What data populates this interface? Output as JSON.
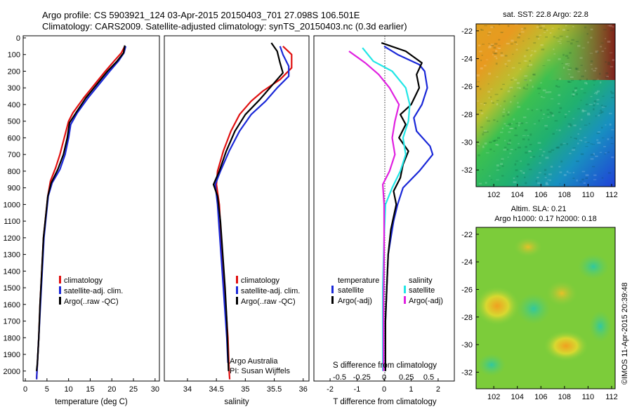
{
  "header": {
    "title_line1": "Argo profile: CS 5903921_124 03-Apr-2015 20150403_701 27.098S 106.501E",
    "title_line2": "Climatology: CARS2009. Satellite-adjusted climatology: synTS_20150403.nc (0.3d earlier)"
  },
  "footer": {
    "credit": "©IMOS 11-Apr-2015 20:39:48",
    "argo_australia": "Argo Australia",
    "pi": "PI: Susan Wijffels"
  },
  "colors": {
    "climatology": "#e01010",
    "satellite": "#1a28d8",
    "argo": "#000000",
    "sat_salinity": "#22e6e6",
    "argo_salinity": "#e020e0"
  },
  "chart_data": [
    {
      "id": "temperature",
      "type": "line",
      "xlabel": "temperature (deg C)",
      "ylabel": "",
      "xlim": [
        -0.5,
        31
      ],
      "ylim": [
        2060,
        0
      ],
      "xticks": [
        "0",
        "5",
        "10",
        "15",
        "20",
        "25",
        "30"
      ],
      "xtick_values": [
        0,
        5,
        10,
        15,
        20,
        25,
        30
      ],
      "yticks": [
        "0",
        "100",
        "200",
        "300",
        "400",
        "500",
        "600",
        "700",
        "800",
        "900",
        "1000",
        "1100",
        "1200",
        "1300",
        "1400",
        "1500",
        "1600",
        "1700",
        "1800",
        "1900",
        "2000"
      ],
      "legend": [
        "climatology",
        "satellite-adj. clim.",
        "Argo(..raw -QC)"
      ],
      "series": [
        {
          "name": "climatology",
          "color": "#e01010",
          "points": [
            [
              23,
              50
            ],
            [
              22.2,
              90
            ],
            [
              20.5,
              140
            ],
            [
              18.5,
              200
            ],
            [
              16,
              280
            ],
            [
              13.5,
              360
            ],
            [
              11,
              450
            ],
            [
              10,
              500
            ],
            [
              9,
              600
            ],
            [
              8,
              700
            ],
            [
              7,
              780
            ],
            [
              5.8,
              860
            ],
            [
              5.2,
              950
            ],
            [
              4.6,
              1100
            ],
            [
              4.2,
              1200
            ],
            [
              3.8,
              1400
            ],
            [
              3.4,
              1600
            ],
            [
              3.1,
              1800
            ],
            [
              2.8,
              1950
            ],
            [
              2.6,
              2050
            ]
          ]
        },
        {
          "name": "satellite-adj. clim.",
          "color": "#1a28d8",
          "points": [
            [
              23.2,
              50
            ],
            [
              22.8,
              90
            ],
            [
              21.5,
              140
            ],
            [
              19.5,
              200
            ],
            [
              17,
              280
            ],
            [
              14.5,
              360
            ],
            [
              12,
              450
            ],
            [
              10.5,
              520
            ],
            [
              10,
              600
            ],
            [
              9.2,
              700
            ],
            [
              8,
              790
            ],
            [
              6.2,
              870
            ],
            [
              5.3,
              950
            ],
            [
              4.7,
              1100
            ],
            [
              4.3,
              1200
            ],
            [
              3.9,
              1400
            ],
            [
              3.5,
              1600
            ],
            [
              3.1,
              1800
            ],
            [
              2.8,
              1950
            ],
            [
              2.6,
              2050
            ]
          ]
        },
        {
          "name": "Argo(..raw -QC)",
          "color": "#000000",
          "points": [
            [
              23,
              45
            ],
            [
              22.7,
              90
            ],
            [
              21.2,
              140
            ],
            [
              19,
              200
            ],
            [
              16.5,
              280
            ],
            [
              14,
              360
            ],
            [
              11.7,
              450
            ],
            [
              10.2,
              510
            ],
            [
              9.7,
              600
            ],
            [
              8.8,
              700
            ],
            [
              7.5,
              790
            ],
            [
              6,
              870
            ],
            [
              5.2,
              950
            ],
            [
              4.6,
              1100
            ],
            [
              4.2,
              1200
            ],
            [
              3.8,
              1400
            ],
            [
              3.4,
              1600
            ],
            [
              3.1,
              1800
            ],
            [
              2.8,
              1950
            ],
            [
              2.6,
              2000
            ]
          ]
        }
      ]
    },
    {
      "id": "salinity",
      "type": "line",
      "xlabel": "salinity",
      "xlim": [
        33.6,
        36.1
      ],
      "ylim": [
        2060,
        0
      ],
      "xticks": [
        "34",
        "34.5",
        "35",
        "35.5",
        "36"
      ],
      "xtick_values": [
        34,
        34.5,
        35,
        35.5,
        36
      ],
      "legend": [
        "climatology",
        "satellite-adj. clim.",
        "Argo(..raw -QC)"
      ],
      "series": [
        {
          "name": "climatology",
          "color": "#e01010",
          "points": [
            [
              35.65,
              50
            ],
            [
              35.8,
              100
            ],
            [
              35.8,
              180
            ],
            [
              35.6,
              250
            ],
            [
              35.3,
              320
            ],
            [
              35.1,
              380
            ],
            [
              34.9,
              460
            ],
            [
              34.75,
              560
            ],
            [
              34.62,
              680
            ],
            [
              34.52,
              800
            ],
            [
              34.5,
              880
            ],
            [
              34.55,
              1000
            ],
            [
              34.58,
              1200
            ],
            [
              34.62,
              1400
            ],
            [
              34.66,
              1600
            ],
            [
              34.7,
              1800
            ],
            [
              34.72,
              2000
            ],
            [
              34.73,
              2050
            ]
          ]
        },
        {
          "name": "satellite-adj. clim.",
          "color": "#1a28d8",
          "points": [
            [
              35.6,
              50
            ],
            [
              35.65,
              100
            ],
            [
              35.75,
              170
            ],
            [
              35.75,
              230
            ],
            [
              35.55,
              300
            ],
            [
              35.35,
              380
            ],
            [
              35.1,
              460
            ],
            [
              34.9,
              560
            ],
            [
              34.72,
              680
            ],
            [
              34.57,
              800
            ],
            [
              34.48,
              880
            ],
            [
              34.52,
              1000
            ],
            [
              34.56,
              1200
            ],
            [
              34.6,
              1400
            ],
            [
              34.64,
              1600
            ],
            [
              34.68,
              1800
            ],
            [
              34.7,
              1950
            ]
          ]
        },
        {
          "name": "Argo(..raw -QC)",
          "color": "#000000",
          "points": [
            [
              35.45,
              30
            ],
            [
              35.55,
              80
            ],
            [
              35.6,
              150
            ],
            [
              35.65,
              210
            ],
            [
              35.45,
              290
            ],
            [
              35.25,
              370
            ],
            [
              35.0,
              460
            ],
            [
              34.82,
              560
            ],
            [
              34.67,
              680
            ],
            [
              34.55,
              800
            ],
            [
              34.45,
              880
            ],
            [
              34.52,
              950
            ],
            [
              34.57,
              1100
            ],
            [
              34.61,
              1300
            ],
            [
              34.65,
              1500
            ],
            [
              34.68,
              1700
            ],
            [
              34.7,
              1900
            ],
            [
              34.71,
              2000
            ]
          ]
        }
      ]
    },
    {
      "id": "difference",
      "type": "line",
      "xlabel": "T difference from climatology",
      "xlabel2": "S difference from climatology",
      "xlim": [
        -2.6,
        2.6
      ],
      "ylim": [
        2060,
        0
      ],
      "xticks": [
        "-2",
        "-1",
        "0",
        "1",
        "2"
      ],
      "xtick_values": [
        -2,
        -1,
        0,
        1,
        2
      ],
      "xticks2": [
        "-0.5",
        "-0.25",
        "0",
        "0.25",
        "0.5"
      ],
      "legend_temperature_title": "temperature",
      "legend_salinity_title": "salinity",
      "legend": [
        "satellite",
        "Argo(-adj)",
        "satellite",
        "Argo(-adj)"
      ],
      "series": [
        {
          "name": "satellite",
          "group": "temperature",
          "color": "#1a28d8",
          "points": [
            [
              0,
              50
            ],
            [
              0.5,
              100
            ],
            [
              1.3,
              160
            ],
            [
              1.5,
              200
            ],
            [
              1.6,
              300
            ],
            [
              1.4,
              400
            ],
            [
              1.1,
              480
            ],
            [
              1.2,
              560
            ],
            [
              1.7,
              650
            ],
            [
              1.8,
              700
            ],
            [
              1.3,
              800
            ],
            [
              0.7,
              900
            ],
            [
              0.5,
              1000
            ],
            [
              0.35,
              1100
            ],
            [
              0.25,
              1200
            ],
            [
              0.15,
              1300
            ],
            [
              0.1,
              1500
            ],
            [
              0.05,
              1700
            ],
            [
              0.05,
              2000
            ]
          ]
        },
        {
          "name": "Argo(-adj)",
          "group": "temperature",
          "color": "#000000",
          "points": [
            [
              -0.1,
              30
            ],
            [
              0.8,
              80
            ],
            [
              1.4,
              150
            ],
            [
              1.2,
              220
            ],
            [
              1.3,
              300
            ],
            [
              1.0,
              400
            ],
            [
              0.6,
              460
            ],
            [
              0.8,
              520
            ],
            [
              0.55,
              600
            ],
            [
              0.9,
              680
            ],
            [
              0.7,
              760
            ],
            [
              0.6,
              840
            ],
            [
              0.35,
              920
            ],
            [
              0.45,
              1000
            ],
            [
              0.25,
              1150
            ],
            [
              0.15,
              1300
            ],
            [
              0.1,
              1500
            ],
            [
              0.05,
              1700
            ],
            [
              0.05,
              2000
            ]
          ]
        },
        {
          "name": "satellite",
          "group": "salinity",
          "color": "#22e6e6",
          "points": [
            [
              -0.8,
              60
            ],
            [
              -0.4,
              140
            ],
            [
              0.3,
              200
            ],
            [
              0.8,
              300
            ],
            [
              0.95,
              400
            ],
            [
              0.9,
              500
            ],
            [
              0.7,
              600
            ],
            [
              0.8,
              700
            ],
            [
              0.6,
              800
            ],
            [
              0.3,
              900
            ],
            [
              0.05,
              1000
            ],
            [
              0.0,
              1200
            ],
            [
              -0.05,
              1500
            ],
            [
              -0.05,
              2000
            ]
          ]
        },
        {
          "name": "Argo(-adj)",
          "group": "salinity",
          "color": "#e020e0",
          "points": [
            [
              -1.3,
              80
            ],
            [
              -0.7,
              150
            ],
            [
              -0.2,
              220
            ],
            [
              0.2,
              300
            ],
            [
              0.55,
              400
            ],
            [
              0.4,
              500
            ],
            [
              0.3,
              600
            ],
            [
              0.4,
              700
            ],
            [
              0.2,
              800
            ],
            [
              -0.05,
              880
            ],
            [
              0.0,
              1000
            ],
            [
              0.0,
              1300
            ],
            [
              -0.02,
              1600
            ],
            [
              -0.02,
              2000
            ]
          ]
        }
      ]
    },
    {
      "id": "sst_map",
      "type": "heatmap",
      "title": "sat. SST: 22.8 Argo: 22.8",
      "xlim": [
        100.5,
        112.3
      ],
      "ylim": [
        -33.2,
        -21.5
      ],
      "xticks": [
        "102",
        "104",
        "106",
        "108",
        "110",
        "112"
      ],
      "xtick_values": [
        102,
        104,
        106,
        108,
        110,
        112
      ],
      "yticks": [
        "-22",
        "-24",
        "-26",
        "-28",
        "-30",
        "-32"
      ],
      "ytick_values": [
        -22,
        -24,
        -26,
        -28,
        -30,
        -32
      ]
    },
    {
      "id": "sla_map",
      "type": "heatmap",
      "title": "Altim. SLA: 0.21",
      "subtitle": "Argo h1000: 0.17 h2000: 0.18",
      "xlim": [
        100.5,
        112.3
      ],
      "ylim": [
        -33.2,
        -21.5
      ],
      "xticks": [
        "102",
        "104",
        "106",
        "108",
        "110",
        "112"
      ],
      "xtick_values": [
        102,
        104,
        106,
        108,
        110,
        112
      ],
      "yticks": [
        "-22",
        "-24",
        "-26",
        "-28",
        "-30",
        "-32"
      ],
      "ytick_values": [
        -22,
        -24,
        -26,
        -28,
        -30,
        -32
      ]
    }
  ]
}
